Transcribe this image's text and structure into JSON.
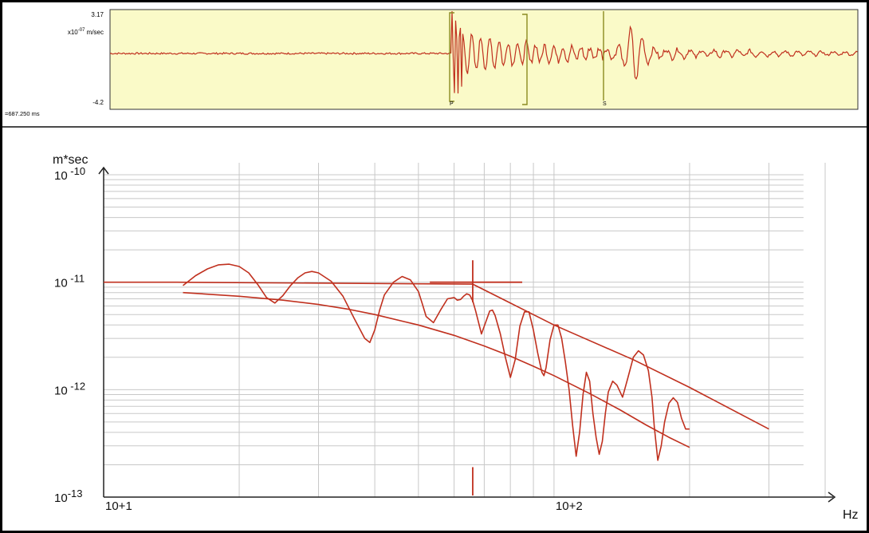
{
  "colors": {
    "trace": "#c0301e",
    "seismogram_bg": "#fafac8",
    "pick_marker": "#8a8a20",
    "grid": "#c8c8c8",
    "axis": "#222222"
  },
  "seismogram": {
    "y_top_label": "3.17",
    "y_bottom_label": "-4.2",
    "unit_prefix": "x10",
    "unit_exponent": "-07",
    "unit_suffix": " m/sec",
    "time_label": "=687.250 ms",
    "p_label": "P",
    "s_label": "S"
  },
  "chart_data": {
    "type": "line",
    "title": "",
    "xlabel": "Hz",
    "ylabel": "m*sec",
    "x_scale": "log",
    "y_scale": "log",
    "xlim": [
      10,
      400
    ],
    "ylim": [
      1e-13,
      1e-10
    ],
    "grid": true,
    "x_ticks": [
      {
        "value": 10,
        "label": "10+1"
      },
      {
        "value": 100,
        "label": "10+2"
      }
    ],
    "y_ticks": [
      {
        "value": 1e-10,
        "base": "10",
        "exp": " -10"
      },
      {
        "value": 1e-11,
        "base": "10",
        "exp": " -11"
      },
      {
        "value": 1e-12,
        "base": "10",
        "exp": " -12"
      },
      {
        "value": 1e-13,
        "base": "10",
        "exp": "-13"
      }
    ],
    "series": [
      {
        "role": "spectrum",
        "x": [
          15,
          16,
          17,
          18,
          19,
          20,
          21,
          22,
          23,
          24,
          25,
          26,
          27,
          28,
          29,
          30,
          32,
          34,
          36,
          38,
          39,
          40,
          41,
          42,
          44,
          46,
          48,
          50,
          51,
          52,
          54,
          56,
          58,
          60,
          61,
          62,
          63,
          64,
          65,
          66,
          67,
          69,
          71,
          72,
          73,
          74,
          76,
          78,
          80,
          82,
          84,
          86,
          88,
          90,
          92,
          94,
          95,
          96,
          98,
          100,
          102,
          104,
          106,
          108,
          110,
          112,
          114,
          116,
          118,
          120,
          122,
          124,
          126,
          128,
          130,
          132,
          135,
          138,
          142,
          146,
          150,
          154,
          158,
          162,
          165,
          167,
          170,
          173,
          176,
          180,
          184,
          188,
          192,
          196,
          200
        ],
        "y": [
          9.3e-12,
          1.15e-11,
          1.33e-11,
          1.45e-11,
          1.47e-11,
          1.4e-11,
          1.22e-11,
          9.5e-12,
          7.2e-12,
          6.4e-12,
          7.5e-12,
          9.3e-12,
          1.1e-11,
          1.22e-11,
          1.26e-11,
          1.22e-11,
          1.02e-11,
          7.4e-12,
          4.6e-12,
          3e-12,
          2.75e-12,
          3.6e-12,
          5.5e-12,
          7.6e-12,
          1e-11,
          1.13e-11,
          1.05e-11,
          8.2e-12,
          6.3e-12,
          4.8e-12,
          4.2e-12,
          5.5e-12,
          7e-12,
          7.2e-12,
          6.8e-12,
          6.9e-12,
          7.4e-12,
          7.8e-12,
          7.6e-12,
          6.7e-12,
          5.4e-12,
          3.3e-12,
          4.6e-12,
          5.4e-12,
          5.5e-12,
          4.9e-12,
          3.3e-12,
          2e-12,
          1.3e-12,
          1.9e-12,
          3.9e-12,
          5.3e-12,
          5.3e-12,
          3.6e-12,
          2.2e-12,
          1.45e-12,
          1.35e-12,
          1.6e-12,
          2.9e-12,
          4e-12,
          4e-12,
          3e-12,
          1.8e-12,
          1e-12,
          4.6e-13,
          2.4e-13,
          4e-13,
          9e-13,
          1.45e-12,
          1.2e-12,
          6e-13,
          3.6e-13,
          2.5e-13,
          3.3e-13,
          6e-13,
          9.5e-13,
          1.2e-12,
          1.1e-12,
          8.5e-13,
          1.3e-12,
          2e-12,
          2.3e-12,
          2.1e-12,
          1.5e-12,
          8.5e-13,
          4.5e-13,
          2.2e-13,
          3e-13,
          5e-13,
          7.5e-13,
          8.4e-13,
          7.6e-13,
          5.4e-13,
          4.3e-13,
          4.3e-13
        ]
      },
      {
        "role": "noise-fit",
        "x": [
          15,
          20,
          25,
          30,
          35,
          40,
          50,
          60,
          70,
          80,
          90,
          100,
          120,
          140,
          160,
          180,
          200
        ],
        "y": [
          8e-12,
          7.4e-12,
          6.8e-12,
          6.2e-12,
          5.6e-12,
          5e-12,
          4e-12,
          3.2e-12,
          2.55e-12,
          2.05e-12,
          1.65e-12,
          1.35e-12,
          9.2e-13,
          6.5e-13,
          4.7e-13,
          3.6e-13,
          2.9e-13
        ]
      },
      {
        "role": "model-fit",
        "x": [
          10,
          14.5,
          66
        ],
        "y": [
          1e-11,
          1e-11,
          9.6e-12
        ]
      },
      {
        "role": "model-fit",
        "x": [
          66,
          100,
          150,
          200,
          300
        ],
        "y": [
          9.6e-12,
          4e-12,
          1.9e-12,
          1.05e-12,
          4.3e-13
        ]
      }
    ],
    "corner_frequency": {
      "x": 66,
      "y": 1e-11,
      "x_bar": [
        53,
        85
      ],
      "y_bar": [
        6.5e-12,
        1.6e-11
      ]
    },
    "floor_marker": {
      "x": 66,
      "y": [
        1e-13,
        1.9e-13
      ]
    }
  }
}
